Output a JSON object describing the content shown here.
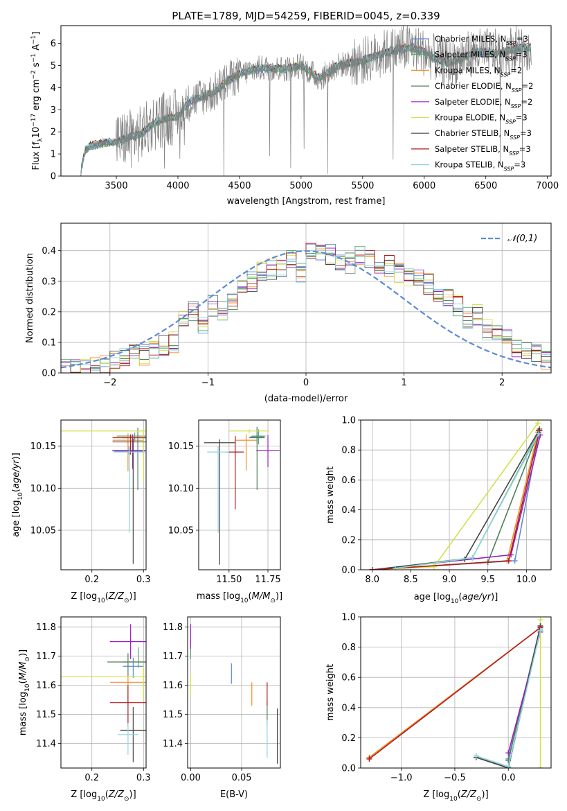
{
  "figure": {
    "title": "PLATE=1789, MJD=54259, FIBERID=0045, z=0.339"
  },
  "models": [
    {
      "name": "Chabrier MILES",
      "nssp": "3",
      "color": "#5b8bd6"
    },
    {
      "name": "Salpeter MILES",
      "nssp": "3",
      "color": "#55a868"
    },
    {
      "name": "Kroupa MILES",
      "nssp": "2",
      "color": "#f08c28"
    },
    {
      "name": "Chabrier ELODIE",
      "nssp": "2",
      "color": "#4f7f5a"
    },
    {
      "name": "Salpeter ELODIE",
      "nssp": "2",
      "color": "#9b1fc0"
    },
    {
      "name": "Kroupa ELODIE",
      "nssp": "3",
      "color": "#d4e04a"
    },
    {
      "name": "Chabrier STELIB",
      "nssp": "3",
      "color": "#444444"
    },
    {
      "name": "Salpeter STELIB",
      "nssp": "3",
      "color": "#b01c1c"
    },
    {
      "name": "Kroupa STELIB",
      "nssp": "3",
      "color": "#8fd3e0"
    }
  ],
  "chart_data": [
    {
      "id": "spectrum",
      "type": "line",
      "xlabel": "wavelength [Angstrom, rest frame]",
      "ylabel": "Flux [f_λ 10^-17 erg cm^-2 s^-1 A^-1]",
      "xlim": [
        3050,
        7030
      ],
      "ylim": [
        0,
        6.8
      ],
      "xticks": [
        "3500",
        "4000",
        "4500",
        "5000",
        "5500",
        "6000",
        "6500",
        "7000"
      ],
      "yticks": [
        "0",
        "1",
        "2",
        "3",
        "4",
        "5",
        "6"
      ],
      "data_color": "#808080",
      "continuum": {
        "wavelength": [
          3200,
          3250,
          3300,
          3400,
          3500,
          3600,
          3700,
          3800,
          3900,
          4000,
          4100,
          4200,
          4300,
          4400,
          4500,
          4600,
          4700,
          4800,
          4900,
          5000,
          5100,
          5150,
          5200,
          5300,
          5400,
          5500,
          5600,
          5700,
          5800,
          5900,
          6000,
          6100,
          6200,
          6300,
          6400,
          6500,
          6600,
          6700,
          6800,
          6850
        ],
        "flux": [
          0,
          1.2,
          1.4,
          1.5,
          1.55,
          1.75,
          1.9,
          2.4,
          2.6,
          2.7,
          3.4,
          3.6,
          3.8,
          4.3,
          4.6,
          4.8,
          4.9,
          4.85,
          4.85,
          5.0,
          4.6,
          4.4,
          4.6,
          5.0,
          5.1,
          5.2,
          5.45,
          5.6,
          5.75,
          5.8,
          5.6,
          5.3,
          5.1,
          5.3,
          5.6,
          5.6,
          5.55,
          5.7,
          5.8,
          5.8
        ]
      }
    },
    {
      "id": "residuals",
      "type": "line",
      "xlabel": "(data-model)/error",
      "ylabel": "Normed distribution",
      "xlim": [
        -2.5,
        2.5
      ],
      "ylim": [
        0,
        0.49
      ],
      "xticks": [
        "−2",
        "−1",
        "0",
        "1",
        "2"
      ],
      "yticks": [
        "0.0",
        "0.1",
        "0.2",
        "0.3",
        "0.4"
      ],
      "legend": "𝒩(0,1)",
      "legend_position": "top-right",
      "normal_curve": {
        "mean": 0,
        "sigma": 1,
        "color": "#5b8bd6"
      },
      "histogram_bins": [
        -2.5,
        -2.4,
        -2.3,
        -2.2,
        -2.1,
        -2.0,
        -1.9,
        -1.8,
        -1.7,
        -1.6,
        -1.5,
        -1.4,
        -1.3,
        -1.2,
        -1.1,
        -1.0,
        -0.9,
        -0.8,
        -0.7,
        -0.6,
        -0.5,
        -0.4,
        -0.3,
        -0.2,
        -0.1,
        0.0,
        0.1,
        0.2,
        0.3,
        0.4,
        0.5,
        0.6,
        0.7,
        0.8,
        0.9,
        1.0,
        1.1,
        1.2,
        1.3,
        1.4,
        1.5,
        1.6,
        1.7,
        1.8,
        1.9,
        2.0,
        2.1,
        2.2,
        2.3,
        2.4,
        2.5
      ],
      "histogram_base": [
        0.01,
        0.01,
        0.02,
        0.02,
        0.03,
        0.04,
        0.05,
        0.06,
        0.06,
        0.08,
        0.09,
        0.1,
        0.18,
        0.2,
        0.16,
        0.22,
        0.2,
        0.23,
        0.27,
        0.3,
        0.33,
        0.34,
        0.35,
        0.37,
        0.33,
        0.4,
        0.39,
        0.39,
        0.37,
        0.36,
        0.38,
        0.37,
        0.36,
        0.35,
        0.33,
        0.31,
        0.32,
        0.29,
        0.26,
        0.24,
        0.22,
        0.18,
        0.19,
        0.14,
        0.12,
        0.11,
        0.08,
        0.08,
        0.06,
        0.04
      ]
    },
    {
      "id": "age-vs-Z",
      "type": "scatter",
      "xlabel": "Z [log10(Z/Z⊙)]",
      "ylabel": "age  [log10(age/yr)]",
      "xlim": [
        0.14,
        0.305
      ],
      "ylim": [
        10.003,
        10.181
      ],
      "xticks": [
        "0.2",
        "0.3"
      ],
      "yticks": [
        "10.05",
        "10.10",
        "10.15"
      ],
      "points": [
        {
          "model": 0,
          "x": 0.272,
          "y": 10.144,
          "xerr": 0.03,
          "yerr": [
            0.004,
            0.006
          ]
        },
        {
          "model": 1,
          "x": 0.283,
          "y": 10.162,
          "xerr": 0.035,
          "yerr": [
            0.006,
            0.004
          ]
        },
        {
          "model": 2,
          "x": 0.27,
          "y": 10.157,
          "xerr": 0.03,
          "yerr": [
            0.037,
            0.008
          ]
        },
        {
          "model": 3,
          "x": 0.289,
          "y": 10.16,
          "xerr": 0.03,
          "yerr": [
            0.062,
            0.012
          ]
        },
        {
          "model": 4,
          "x": 0.279,
          "y": 10.145,
          "xerr": 0.04,
          "yerr": [
            0.022,
            0.019
          ]
        },
        {
          "model": 5,
          "x": 0.3,
          "y": 10.168,
          "xerr": 0.16,
          "yerr": [
            0.06,
            0.002
          ]
        },
        {
          "model": 6,
          "x": 0.28,
          "y": 10.155,
          "xerr": 0.04,
          "yerr": [
            0.145,
            0.004
          ]
        },
        {
          "model": 7,
          "x": 0.275,
          "y": 10.16,
          "xerr": 0.035,
          "yerr": [
            0.02,
            0.004
          ]
        },
        {
          "model": 8,
          "x": 0.273,
          "y": 10.143,
          "xerr": 0.03,
          "yerr": [
            0.096,
            0.005
          ]
        }
      ]
    },
    {
      "id": "age-vs-mass",
      "type": "scatter",
      "xlabel": "mass [log10(M/M⊙)]",
      "ylabel": "",
      "xlim": [
        11.305,
        11.83
      ],
      "ylim": [
        10.003,
        10.181
      ],
      "xticks": [
        "11.50",
        "11.75"
      ],
      "yticks": [
        "10.05",
        "10.10",
        "10.15"
      ],
      "points": [
        {
          "model": 0,
          "x": 11.68,
          "y": 10.161,
          "xerr": 0.045,
          "yerr": [
            0.008,
            0.01
          ]
        },
        {
          "model": 1,
          "x": 11.69,
          "y": 10.162,
          "xerr": 0.045,
          "yerr": [
            0.01,
            0.008
          ]
        },
        {
          "model": 2,
          "x": 11.61,
          "y": 10.157,
          "xerr": 0.07,
          "yerr": [
            0.036,
            0.007
          ]
        },
        {
          "model": 3,
          "x": 11.68,
          "y": 10.16,
          "xerr": 0.05,
          "yerr": [
            0.062,
            0.013
          ]
        },
        {
          "model": 4,
          "x": 11.75,
          "y": 10.145,
          "xerr": 0.075,
          "yerr": [
            0.02,
            0.018
          ]
        },
        {
          "model": 5,
          "x": 11.63,
          "y": 10.168,
          "xerr": 0.13,
          "yerr": [
            0.003,
            0.002
          ]
        },
        {
          "model": 6,
          "x": 11.44,
          "y": 10.154,
          "xerr": 0.1,
          "yerr": [
            0.145,
            0.004
          ]
        },
        {
          "model": 7,
          "x": 11.54,
          "y": 10.143,
          "xerr": 0.055,
          "yerr": [
            0.068,
            0.019
          ]
        },
        {
          "model": 8,
          "x": 11.43,
          "y": 10.143,
          "xerr": 0.07,
          "yerr": [
            0.096,
            0.007
          ]
        }
      ]
    },
    {
      "id": "massweight-vs-age",
      "type": "line",
      "xlabel": "age  [log10(age/yr)]",
      "ylabel": "mass weight",
      "xlim": [
        7.85,
        10.32
      ],
      "ylim": [
        0,
        1
      ],
      "xticks": [
        "8.0",
        "8.5",
        "9.0",
        "9.5",
        "10.0"
      ],
      "yticks": [
        "0.0",
        "0.2",
        "0.4",
        "0.6",
        "0.8",
        "1.0"
      ],
      "series": [
        {
          "model": 0,
          "x": [
            8.0,
            9.85,
            10.17
          ],
          "y": [
            0.0,
            0.06,
            0.93
          ]
        },
        {
          "model": 1,
          "x": [
            8.0,
            9.3,
            10.16
          ],
          "y": [
            0.0,
            0.08,
            0.92
          ]
        },
        {
          "model": 2,
          "x": [
            8.0,
            9.75,
            10.15
          ],
          "y": [
            0.0,
            0.06,
            0.92
          ]
        },
        {
          "model": 3,
          "x": [
            8.0,
            9.5,
            10.17
          ],
          "y": [
            0.0,
            0.05,
            0.94
          ]
        },
        {
          "model": 4,
          "x": [
            8.0,
            9.8,
            10.18
          ],
          "y": [
            0.0,
            0.1,
            0.9
          ]
        },
        {
          "model": 5,
          "x": [
            8.0,
            8.8,
            10.15
          ],
          "y": [
            0.0,
            0.02,
            0.98
          ]
        },
        {
          "model": 6,
          "x": [
            8.0,
            9.2,
            10.16
          ],
          "y": [
            0.0,
            0.07,
            0.93
          ]
        },
        {
          "model": 7,
          "x": [
            8.0,
            9.77,
            10.17
          ],
          "y": [
            0.0,
            0.06,
            0.93
          ]
        },
        {
          "model": 8,
          "x": [
            8.3,
            9.3,
            10.16
          ],
          "y": [
            0.01,
            0.08,
            0.91
          ]
        }
      ]
    },
    {
      "id": "mass-vs-Z",
      "type": "scatter",
      "xlabel": "Z [log10(Z/Z⊙)]",
      "ylabel": "mass [log10(M/M⊙)]",
      "xlim": [
        0.14,
        0.305
      ],
      "ylim": [
        11.315,
        11.835
      ],
      "xticks": [
        "0.2",
        "0.3"
      ],
      "yticks": [
        "11.4",
        "11.5",
        "11.6",
        "11.7",
        "11.8"
      ],
      "points": [
        {
          "model": 0,
          "x": 0.28,
          "y": 11.665,
          "xerr": 0.02,
          "yerr": [
            0.04,
            0.03
          ]
        },
        {
          "model": 1,
          "x": 0.29,
          "y": 11.68,
          "xerr": 0.03,
          "yerr": [
            0.02,
            0.05
          ]
        },
        {
          "model": 2,
          "x": 0.27,
          "y": 11.61,
          "xerr": 0.035,
          "yerr": [
            0.07,
            0.02
          ]
        },
        {
          "model": 3,
          "x": 0.27,
          "y": 11.68,
          "xerr": 0.04,
          "yerr": [
            0.05,
            0.03
          ]
        },
        {
          "model": 4,
          "x": 0.275,
          "y": 11.75,
          "xerr": 0.04,
          "yerr": [
            0.06,
            0.06
          ]
        },
        {
          "model": 5,
          "x": 0.3,
          "y": 11.63,
          "xerr": 0.16,
          "yerr": [
            0.08,
            0.04
          ]
        },
        {
          "model": 6,
          "x": 0.28,
          "y": 11.445,
          "xerr": 0.025,
          "yerr": [
            0.11,
            0.08
          ]
        },
        {
          "model": 7,
          "x": 0.27,
          "y": 11.54,
          "xerr": 0.035,
          "yerr": [
            0.08,
            0.06
          ]
        },
        {
          "model": 8,
          "x": 0.27,
          "y": 11.43,
          "xerr": 0.02,
          "yerr": [
            0.07,
            0.04
          ]
        }
      ]
    },
    {
      "id": "mass-vs-ebv",
      "type": "scatter",
      "xlabel": "E(B-V)",
      "ylabel": "",
      "xlim": [
        -0.003,
        0.088
      ],
      "ylim": [
        11.315,
        11.835
      ],
      "xticks": [
        "0.00",
        "0.05"
      ],
      "yticks": [
        "11.4",
        "11.5",
        "11.6",
        "11.7",
        "11.8"
      ],
      "points": [
        {
          "model": 0,
          "x": 0.04,
          "y": 11.645,
          "yerr": [
            0.04,
            0.03
          ]
        },
        {
          "model": 1,
          "x": 0.0,
          "y": 11.72,
          "yerr": [
            0.03,
            0.04
          ]
        },
        {
          "model": 2,
          "x": 0.06,
          "y": 11.57,
          "yerr": [
            0.04,
            0.04
          ]
        },
        {
          "model": 3,
          "x": 0.075,
          "y": 11.5,
          "yerr": [
            0.04,
            0.04
          ]
        },
        {
          "model": 4,
          "x": 0.0,
          "y": 11.765,
          "yerr": [
            0.04,
            0.045
          ]
        },
        {
          "model": 5,
          "x": 0.0,
          "y": 11.6,
          "yerr": [
            0.04,
            0.04
          ]
        },
        {
          "model": 6,
          "x": 0.085,
          "y": 11.43,
          "yerr": [
            0.1,
            0.09
          ]
        },
        {
          "model": 7,
          "x": 0.075,
          "y": 11.57,
          "yerr": [
            0.04,
            0.04
          ]
        },
        {
          "model": 8,
          "x": 0.075,
          "y": 11.42,
          "yerr": [
            0.07,
            0.06
          ]
        }
      ]
    },
    {
      "id": "massweight-vs-Z",
      "type": "line",
      "xlabel": "Z [log10(Z/Z⊙)]",
      "ylabel": "mass weight",
      "xlim": [
        -1.38,
        0.4
      ],
      "ylim": [
        0,
        1
      ],
      "xticks": [
        "−1.0",
        "−0.5",
        "0.0"
      ],
      "yticks": [
        "0.0",
        "0.2",
        "0.4",
        "0.6",
        "0.8",
        "1.0"
      ],
      "series": [
        {
          "model": 0,
          "x": [
            0.0,
            0.3
          ],
          "y": [
            0.06,
            0.93
          ]
        },
        {
          "model": 1,
          "x": [
            -0.3,
            0.0,
            0.3
          ],
          "y": [
            0.08,
            0.0,
            0.92
          ]
        },
        {
          "model": 2,
          "x": [
            -1.3,
            0.3
          ],
          "y": [
            0.07,
            0.93
          ]
        },
        {
          "model": 3,
          "x": [
            0.0,
            0.3
          ],
          "y": [
            0.05,
            0.94
          ]
        },
        {
          "model": 4,
          "x": [
            0.0,
            0.3
          ],
          "y": [
            0.1,
            0.9
          ]
        },
        {
          "model": 5,
          "x": [
            0.3,
            0.3
          ],
          "y": [
            0.0,
            0.98
          ]
        },
        {
          "model": 6,
          "x": [
            -0.3,
            0.0,
            0.3
          ],
          "y": [
            0.07,
            0.0,
            0.94
          ]
        },
        {
          "model": 7,
          "x": [
            -1.3,
            0.3
          ],
          "y": [
            0.06,
            0.93
          ]
        },
        {
          "model": 8,
          "x": [
            -0.3,
            0.0,
            0.3
          ],
          "y": [
            0.08,
            0.01,
            0.91
          ]
        }
      ]
    }
  ]
}
